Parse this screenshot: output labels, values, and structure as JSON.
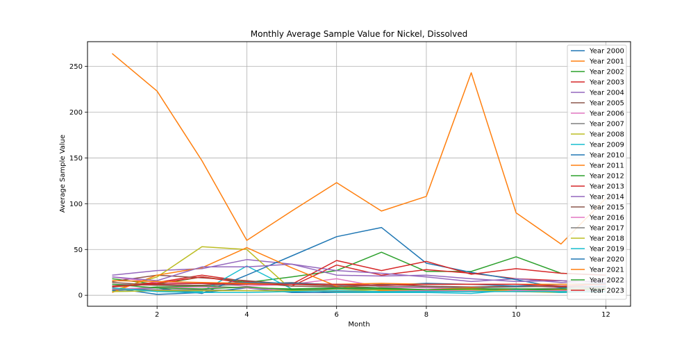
{
  "chart_data": {
    "type": "line",
    "title": "Monthly Average Sample Value for Nickel, Dissolved",
    "xlabel": "Month",
    "ylabel": "Average Sample Value",
    "xlim": [
      0.45,
      12.55
    ],
    "ylim": [
      -12,
      277
    ],
    "xticks": [
      2,
      4,
      6,
      8,
      10,
      12
    ],
    "yticks": [
      0,
      50,
      100,
      150,
      200,
      250
    ],
    "grid": true,
    "legend_position": "top-right",
    "x": [
      1,
      2,
      3,
      4,
      5,
      6,
      7,
      8,
      9,
      10,
      11,
      12
    ],
    "series": [
      {
        "name": "Year 2000",
        "color": "#1f77b4",
        "values": [
          8,
          1,
          3,
          8,
          3,
          3,
          4,
          5,
          6,
          5,
          4,
          6
        ]
      },
      {
        "name": "Year 2001",
        "color": "#ff7f0e",
        "values": [
          264,
          223,
          147,
          60,
          92,
          123,
          92,
          108,
          243,
          90,
          56,
          106
        ]
      },
      {
        "name": "Year 2002",
        "color": "#2ca02c",
        "values": [
          18,
          12,
          20,
          14,
          20,
          27,
          47,
          26,
          26,
          42,
          24,
          22
        ]
      },
      {
        "name": "Year 2003",
        "color": "#d62728",
        "values": [
          10,
          14,
          22,
          15,
          10,
          33,
          22,
          28,
          24,
          18,
          16,
          14
        ]
      },
      {
        "name": "Year 2004",
        "color": "#9467bd",
        "values": [
          22,
          27,
          29,
          39,
          34,
          27,
          24,
          20,
          15,
          18,
          14,
          16
        ]
      },
      {
        "name": "Year 2005",
        "color": "#8c564b",
        "values": [
          15,
          22,
          19,
          16,
          12,
          10,
          8,
          9,
          7,
          6,
          6,
          5
        ]
      },
      {
        "name": "Year 2006",
        "color": "#e377c2",
        "values": [
          20,
          14,
          13,
          10,
          12,
          18,
          9,
          8,
          7,
          6,
          8,
          10
        ]
      },
      {
        "name": "Year 2007",
        "color": "#7f7f7f",
        "values": [
          12,
          11,
          10,
          12,
          14,
          11,
          10,
          9,
          8,
          9,
          10,
          9
        ]
      },
      {
        "name": "Year 2008",
        "color": "#bcbd22",
        "values": [
          5,
          20,
          53,
          50,
          6,
          5,
          4,
          5,
          5,
          4,
          3,
          4
        ]
      },
      {
        "name": "Year 2009",
        "color": "#17becf",
        "values": [
          4,
          5,
          4,
          32,
          7,
          3,
          3,
          3,
          2,
          6,
          3,
          4
        ]
      },
      {
        "name": "Year 2010",
        "color": "#1f77b4",
        "values": [
          5,
          8,
          2,
          22,
          43,
          64,
          74,
          35,
          25,
          17,
          8,
          10
        ]
      },
      {
        "name": "Year 2011",
        "color": "#ff7f0e",
        "values": [
          3,
          22,
          30,
          52,
          30,
          10,
          5,
          6,
          8,
          5,
          6,
          8
        ]
      },
      {
        "name": "Year 2012",
        "color": "#2ca02c",
        "values": [
          6,
          9,
          10,
          8,
          7,
          8,
          8,
          6,
          6,
          7,
          5,
          6
        ]
      },
      {
        "name": "Year 2013",
        "color": "#d62728",
        "values": [
          9,
          13,
          20,
          13,
          12,
          38,
          27,
          37,
          23,
          29,
          24,
          22
        ]
      },
      {
        "name": "Year 2014",
        "color": "#9467bd",
        "values": [
          20,
          16,
          31,
          31,
          34,
          22,
          21,
          22,
          18,
          15,
          16,
          14
        ]
      },
      {
        "name": "Year 2015",
        "color": "#8c564b",
        "values": [
          14,
          11,
          11,
          14,
          10,
          9,
          12,
          10,
          9,
          10,
          9,
          8
        ]
      },
      {
        "name": "Year 2016",
        "color": "#e377c2",
        "values": [
          7,
          8,
          9,
          8,
          5,
          7,
          6,
          5,
          5,
          5,
          5,
          5
        ]
      },
      {
        "name": "Year 2017",
        "color": "#7f7f7f",
        "values": [
          6,
          6,
          6,
          5,
          5,
          4,
          4,
          4,
          4,
          4,
          4,
          4
        ]
      },
      {
        "name": "Year 2018",
        "color": "#bcbd22",
        "values": [
          4,
          5,
          5,
          5,
          5,
          5,
          6,
          6,
          6,
          4,
          4,
          4
        ]
      },
      {
        "name": "Year 2019",
        "color": "#17becf",
        "values": [
          8,
          4,
          3,
          3,
          4,
          5,
          4,
          4,
          4,
          4,
          4,
          4
        ]
      },
      {
        "name": "Year 2020",
        "color": "#1f77b4",
        "values": [
          10,
          12,
          13,
          14,
          13,
          12,
          11,
          13,
          12,
          10,
          12,
          13
        ]
      },
      {
        "name": "Year 2021",
        "color": "#ff7f0e",
        "values": [
          16,
          15,
          14,
          13,
          12,
          12,
          13,
          12,
          12,
          12,
          12,
          12
        ]
      },
      {
        "name": "Year 2022",
        "color": "#2ca02c",
        "values": [
          12,
          8,
          7,
          9,
          6,
          7,
          7,
          6,
          7,
          7,
          7,
          7
        ]
      },
      {
        "name": "Year 2023",
        "color": "#d62728",
        "values": [
          10,
          12,
          13,
          12,
          12,
          12,
          11,
          12,
          12,
          12,
          10,
          12
        ]
      }
    ]
  }
}
